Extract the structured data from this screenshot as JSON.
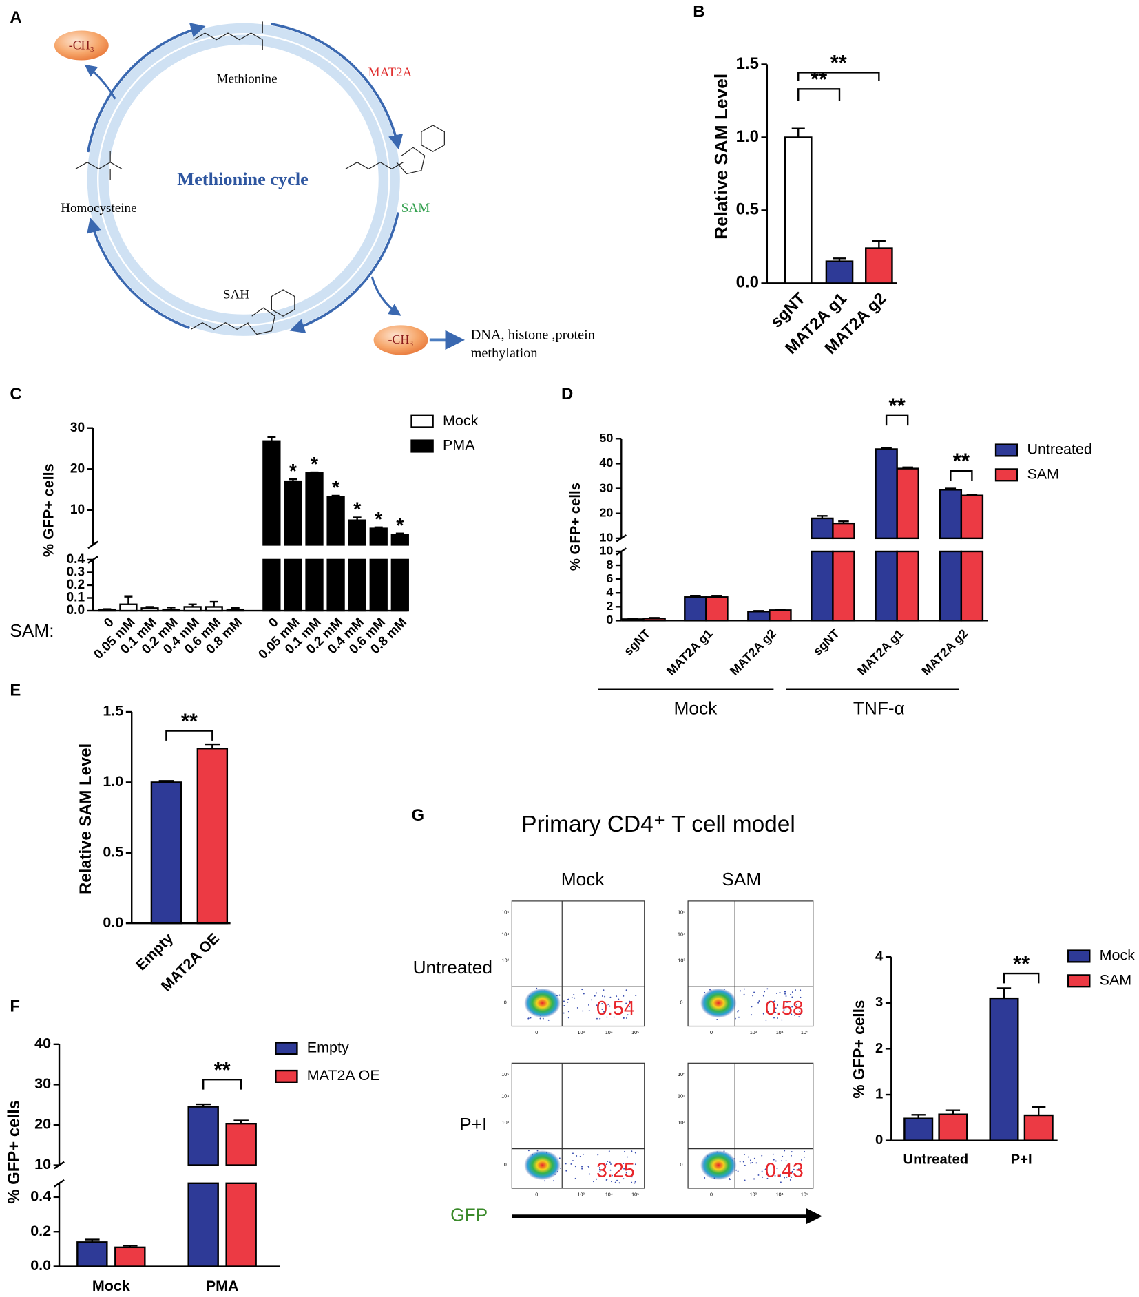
{
  "panel_labels": [
    "A",
    "B",
    "C",
    "D",
    "E",
    "F",
    "G"
  ],
  "diagram": {
    "title": "Methionine cycle",
    "metabolites": [
      "Methionine",
      "SAM",
      "SAH",
      "Homocysteine"
    ],
    "enzyme": "MAT2A",
    "methyl": [
      "-CH₃",
      "-CH₃"
    ],
    "outcome": [
      "DNA, histone ,protein",
      "methylation"
    ]
  },
  "chart_data": [
    {
      "type": "bar",
      "ylabel": "Relative SAM Level",
      "categories": [
        "sgNT",
        "MAT2A g1",
        "MAT2A g2"
      ],
      "series": [
        {
          "values": [
            1.0,
            0.15,
            0.24
          ],
          "errors": [
            0.06,
            0.02,
            0.05
          ],
          "colors": [
            "#ffffff",
            "#2e3a97",
            "#ec3a44"
          ]
        }
      ],
      "ylim": [
        0,
        1.5
      ],
      "yticks": [
        {
          "value": 0,
          "label": "0.0"
        },
        0.5,
        {
          "value": 1,
          "label": "1.0"
        },
        1.5
      ],
      "annotations": [
        "**",
        "**"
      ]
    },
    {
      "type": "bar",
      "ylabel": "% GFP+ cells",
      "x_prefix": "SAM:",
      "categories": [
        "0",
        "0.05 mM",
        "0.1 mM",
        "0.2 mM",
        "0.4 mM",
        "0.6 mM",
        "0.8 mM"
      ],
      "series": [
        {
          "name": "Mock",
          "color": "#ffffff",
          "values": [
            0.01,
            0.05,
            0.02,
            0.01,
            0.03,
            0.03,
            0.01
          ],
          "errors": [
            0.003,
            0.06,
            0.01,
            0.015,
            0.02,
            0.04,
            0.012
          ]
        },
        {
          "name": "PMA",
          "color": "#000000",
          "values": [
            26.8,
            17,
            19,
            13.2,
            7.5,
            5.5,
            4
          ],
          "errors": [
            1,
            0.5,
            0.2,
            0.3,
            0.7,
            0.3,
            0.3
          ]
        }
      ],
      "segments": [
        {
          "ylim": [
            0,
            0.4
          ],
          "yticks": [
            {
              "value": 0,
              "label": "0.0"
            },
            0.1,
            0.2,
            0.3,
            0.4
          ]
        },
        {
          "ylim": [
            1.5,
            30
          ],
          "yticks": [
            10,
            20,
            30
          ]
        }
      ],
      "annotations": [
        "*",
        "*",
        "*",
        "*",
        "*",
        "*"
      ]
    },
    {
      "type": "bar",
      "ylabel": "% GFP+ cells",
      "categories": [
        "sgNT",
        "MAT2A g1",
        "MAT2A g2",
        "sgNT",
        "MAT2A g1",
        "MAT2A g2"
      ],
      "groups": [
        "Mock",
        "TNF-α"
      ],
      "series": [
        {
          "name": "Untreated",
          "color": "#2e3a97",
          "values": [
            0.2,
            3.4,
            1.3,
            18,
            45.8,
            29.5
          ],
          "errors": [
            0.1,
            0.2,
            0.1,
            1,
            0.5,
            0.5
          ]
        },
        {
          "name": "SAM",
          "color": "#ec3a44",
          "values": [
            0.3,
            3.4,
            1.5,
            16,
            38,
            27.2
          ],
          "errors": [
            0.1,
            0.1,
            0.1,
            0.8,
            0.5,
            0.3
          ]
        }
      ],
      "segments": [
        {
          "ylim": [
            0,
            10
          ],
          "yticks": [
            0,
            2,
            4,
            6,
            8,
            10
          ]
        },
        {
          "ylim": [
            10,
            50
          ],
          "yticks": [
            10,
            20,
            30,
            40,
            50
          ]
        }
      ],
      "annotations": [
        "**",
        "**"
      ]
    },
    {
      "type": "bar",
      "ylabel": "Relative SAM Level",
      "categories": [
        "Empty",
        "MAT2A OE"
      ],
      "series": [
        {
          "values": [
            1.0,
            1.24
          ],
          "errors": [
            0.01,
            0.03
          ],
          "colors": [
            "#2e3a97",
            "#ec3a44"
          ]
        }
      ],
      "ylim": [
        0,
        1.5
      ],
      "yticks": [
        {
          "value": 0,
          "label": "0.0"
        },
        0.5,
        {
          "value": 1,
          "label": "1.0"
        },
        1.5
      ],
      "annotations": [
        "**"
      ]
    },
    {
      "type": "bar",
      "ylabel": "% GFP+ cells",
      "categories": [
        "Mock",
        "PMA"
      ],
      "series": [
        {
          "name": "Empty",
          "color": "#2e3a97",
          "values": [
            0.14,
            24.5
          ],
          "errors": [
            0.015,
            0.6
          ]
        },
        {
          "name": "MAT2A OE",
          "color": "#ec3a44",
          "values": [
            0.11,
            20.3
          ],
          "errors": [
            0.01,
            0.8
          ]
        }
      ],
      "segments": [
        {
          "ylim": [
            0,
            0.48
          ],
          "yticks": [
            {
              "value": 0,
              "label": "0.0"
            },
            0.2,
            0.4
          ]
        },
        {
          "ylim": [
            10,
            40
          ],
          "yticks": [
            10,
            20,
            30,
            40
          ]
        }
      ],
      "annotations": [
        "**"
      ]
    },
    {
      "type": "bar",
      "ylabel": "% GFP+ cells",
      "categories": [
        "Untreated",
        "P+I"
      ],
      "series": [
        {
          "name": "Mock",
          "color": "#2e3a97",
          "values": [
            0.48,
            3.1
          ],
          "errors": [
            0.08,
            0.22
          ]
        },
        {
          "name": "SAM",
          "color": "#ec3a44",
          "values": [
            0.57,
            0.55
          ],
          "errors": [
            0.09,
            0.18
          ]
        }
      ],
      "ylim": [
        0,
        4
      ],
      "yticks": [
        0,
        1,
        2,
        3,
        4
      ],
      "annotations": [
        "**"
      ]
    }
  ],
  "flow": {
    "title": "Primary CD4⁺ T cell model",
    "columns": [
      "Mock",
      "SAM"
    ],
    "rows": [
      "Untreated",
      "P+I"
    ],
    "values": [
      [
        0.54,
        0.58
      ],
      [
        3.25,
        0.43
      ]
    ],
    "x_axis_label": "GFP",
    "ticks": [
      "0",
      "10³",
      "10⁴",
      "10⁵"
    ]
  }
}
